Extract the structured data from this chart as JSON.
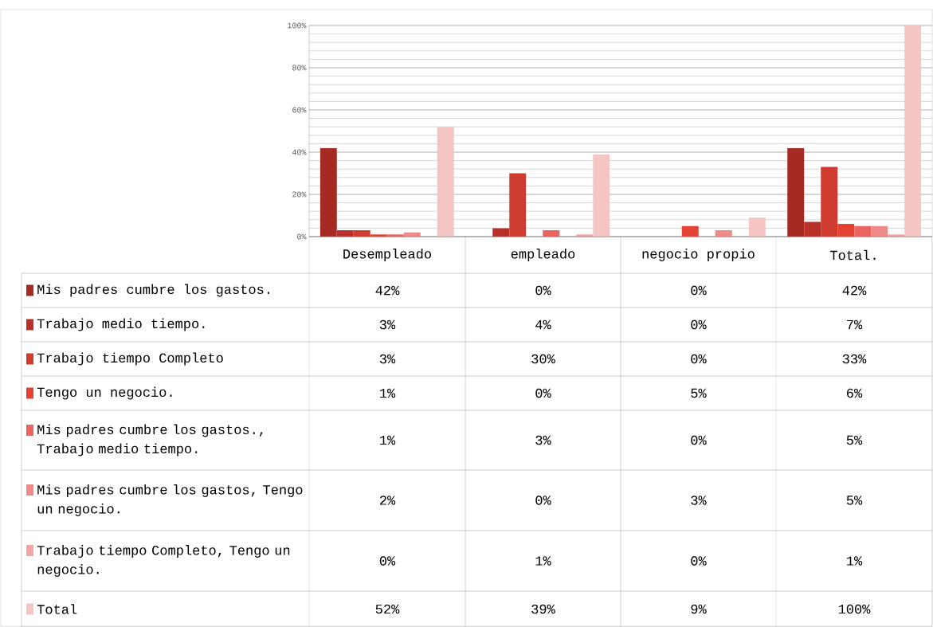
{
  "chart_data": {
    "type": "bar",
    "categories": [
      "Desempleado",
      "empleado",
      "negocio propio",
      "Total."
    ],
    "series": [
      {
        "name": "Mis padres cumbre los gastos.",
        "color": "#a52a22",
        "values": [
          42,
          0,
          0,
          42
        ],
        "value_labels": [
          "42%",
          "0%",
          "0%",
          "42%"
        ]
      },
      {
        "name": "Trabajo medio tiempo.",
        "color": "#b9302a",
        "values": [
          3,
          4,
          0,
          7
        ],
        "value_labels": [
          "3%",
          "4%",
          "0%",
          "7%"
        ]
      },
      {
        "name": "Trabajo tiempo Completo",
        "color": "#d03b30",
        "values": [
          3,
          30,
          0,
          33
        ],
        "value_labels": [
          "3%",
          "30%",
          "0%",
          "33%"
        ]
      },
      {
        "name": "Tengo un negocio.",
        "color": "#e34234",
        "values": [
          1,
          0,
          5,
          6
        ],
        "value_labels": [
          "1%",
          "0%",
          "5%",
          "6%"
        ]
      },
      {
        "name": "Mis padres cumbre los gastos., Trabajo medio tiempo.",
        "color": "#ea6560",
        "values": [
          1,
          3,
          0,
          5
        ],
        "value_labels": [
          "1%",
          "3%",
          "0%",
          "5%"
        ]
      },
      {
        "name": "Mis padres cumbre los gastos, Tengo un negocio.",
        "color": "#ee8a88",
        "values": [
          2,
          0,
          3,
          5
        ],
        "value_labels": [
          "2%",
          "0%",
          "3%",
          "5%"
        ]
      },
      {
        "name": "Trabajo tiempo Completo, Tengo un negocio.",
        "color": "#f1a5a5",
        "values": [
          0,
          1,
          0,
          1
        ],
        "value_labels": [
          "0%",
          "1%",
          "0%",
          "1%"
        ]
      },
      {
        "name": "Total",
        "color": "#f5c5c4",
        "values": [
          52,
          39,
          9,
          100
        ],
        "value_labels": [
          "52%",
          "39%",
          "9%",
          "100%"
        ]
      }
    ],
    "ylim": [
      0,
      100
    ],
    "yticks": [
      {
        "value": 0,
        "label": "0%"
      },
      {
        "value": 20,
        "label": "20%"
      },
      {
        "value": 40,
        "label": "40%"
      },
      {
        "value": 60,
        "label": "60%"
      },
      {
        "value": 80,
        "label": "80%"
      },
      {
        "value": 100,
        "label": "100%"
      }
    ],
    "grid": "y",
    "legend": "bottom"
  }
}
